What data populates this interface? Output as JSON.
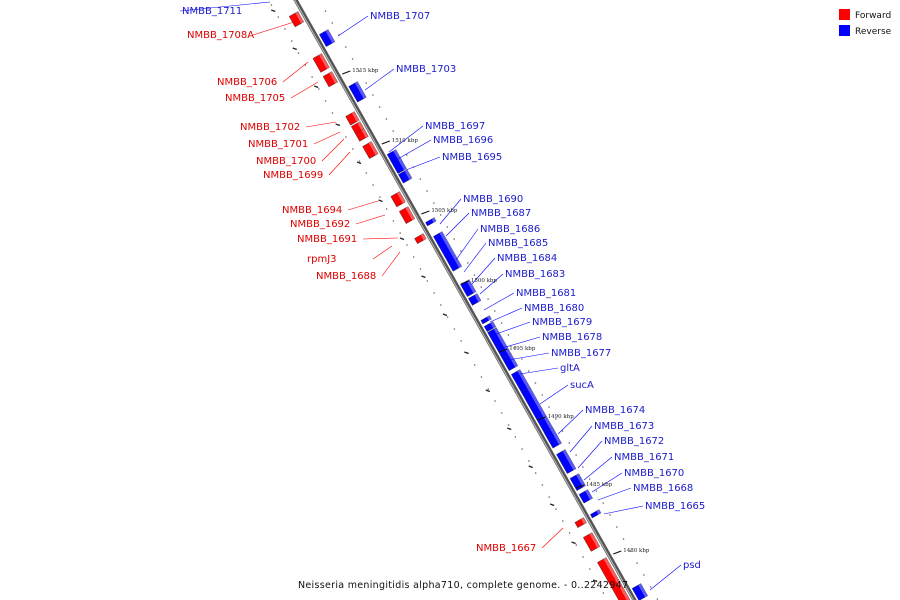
{
  "legend": {
    "forward_label": "Forward",
    "reverse_label": "Reverse",
    "forward_color": "#ff0000",
    "reverse_color": "#0000ff"
  },
  "caption": "Neisseria meningitidis alpha710, complete genome. - 0..2242947",
  "scale_ticks": [
    "1515 kbp",
    "1510 kbp",
    "1505 kbp",
    "1500 kbp",
    "1495 kbp",
    "1490 kbp",
    "1485 kbp",
    "1480 kbp"
  ],
  "forward_genes": [
    "NMBB_1708A",
    "NMBB_1706",
    "NMBB_1705",
    "NMBB_1702",
    "NMBB_1701",
    "NMBB_1700",
    "NMBB_1699",
    "NMBB_1694",
    "NMBB_1692",
    "NMBB_1691",
    "rpmJ3",
    "NMBB_1688",
    "NMBB_1667"
  ],
  "reverse_genes": [
    "NMBB_1711",
    "NMBB_1707",
    "NMBB_1703",
    "NMBB_1697",
    "NMBB_1696",
    "NMBB_1695",
    "NMBB_1690",
    "NMBB_1687",
    "NMBB_1686",
    "NMBB_1685",
    "NMBB_1684",
    "NMBB_1683",
    "NMBB_1681",
    "NMBB_1680",
    "NMBB_1679",
    "NMBB_1678",
    "NMBB_1677",
    "gltA",
    "sucA",
    "NMBB_1674",
    "NMBB_1673",
    "NMBB_1672",
    "NMBB_1671",
    "NMBB_1670",
    "NMBB_1668",
    "NMBB_1665",
    "psd"
  ]
}
